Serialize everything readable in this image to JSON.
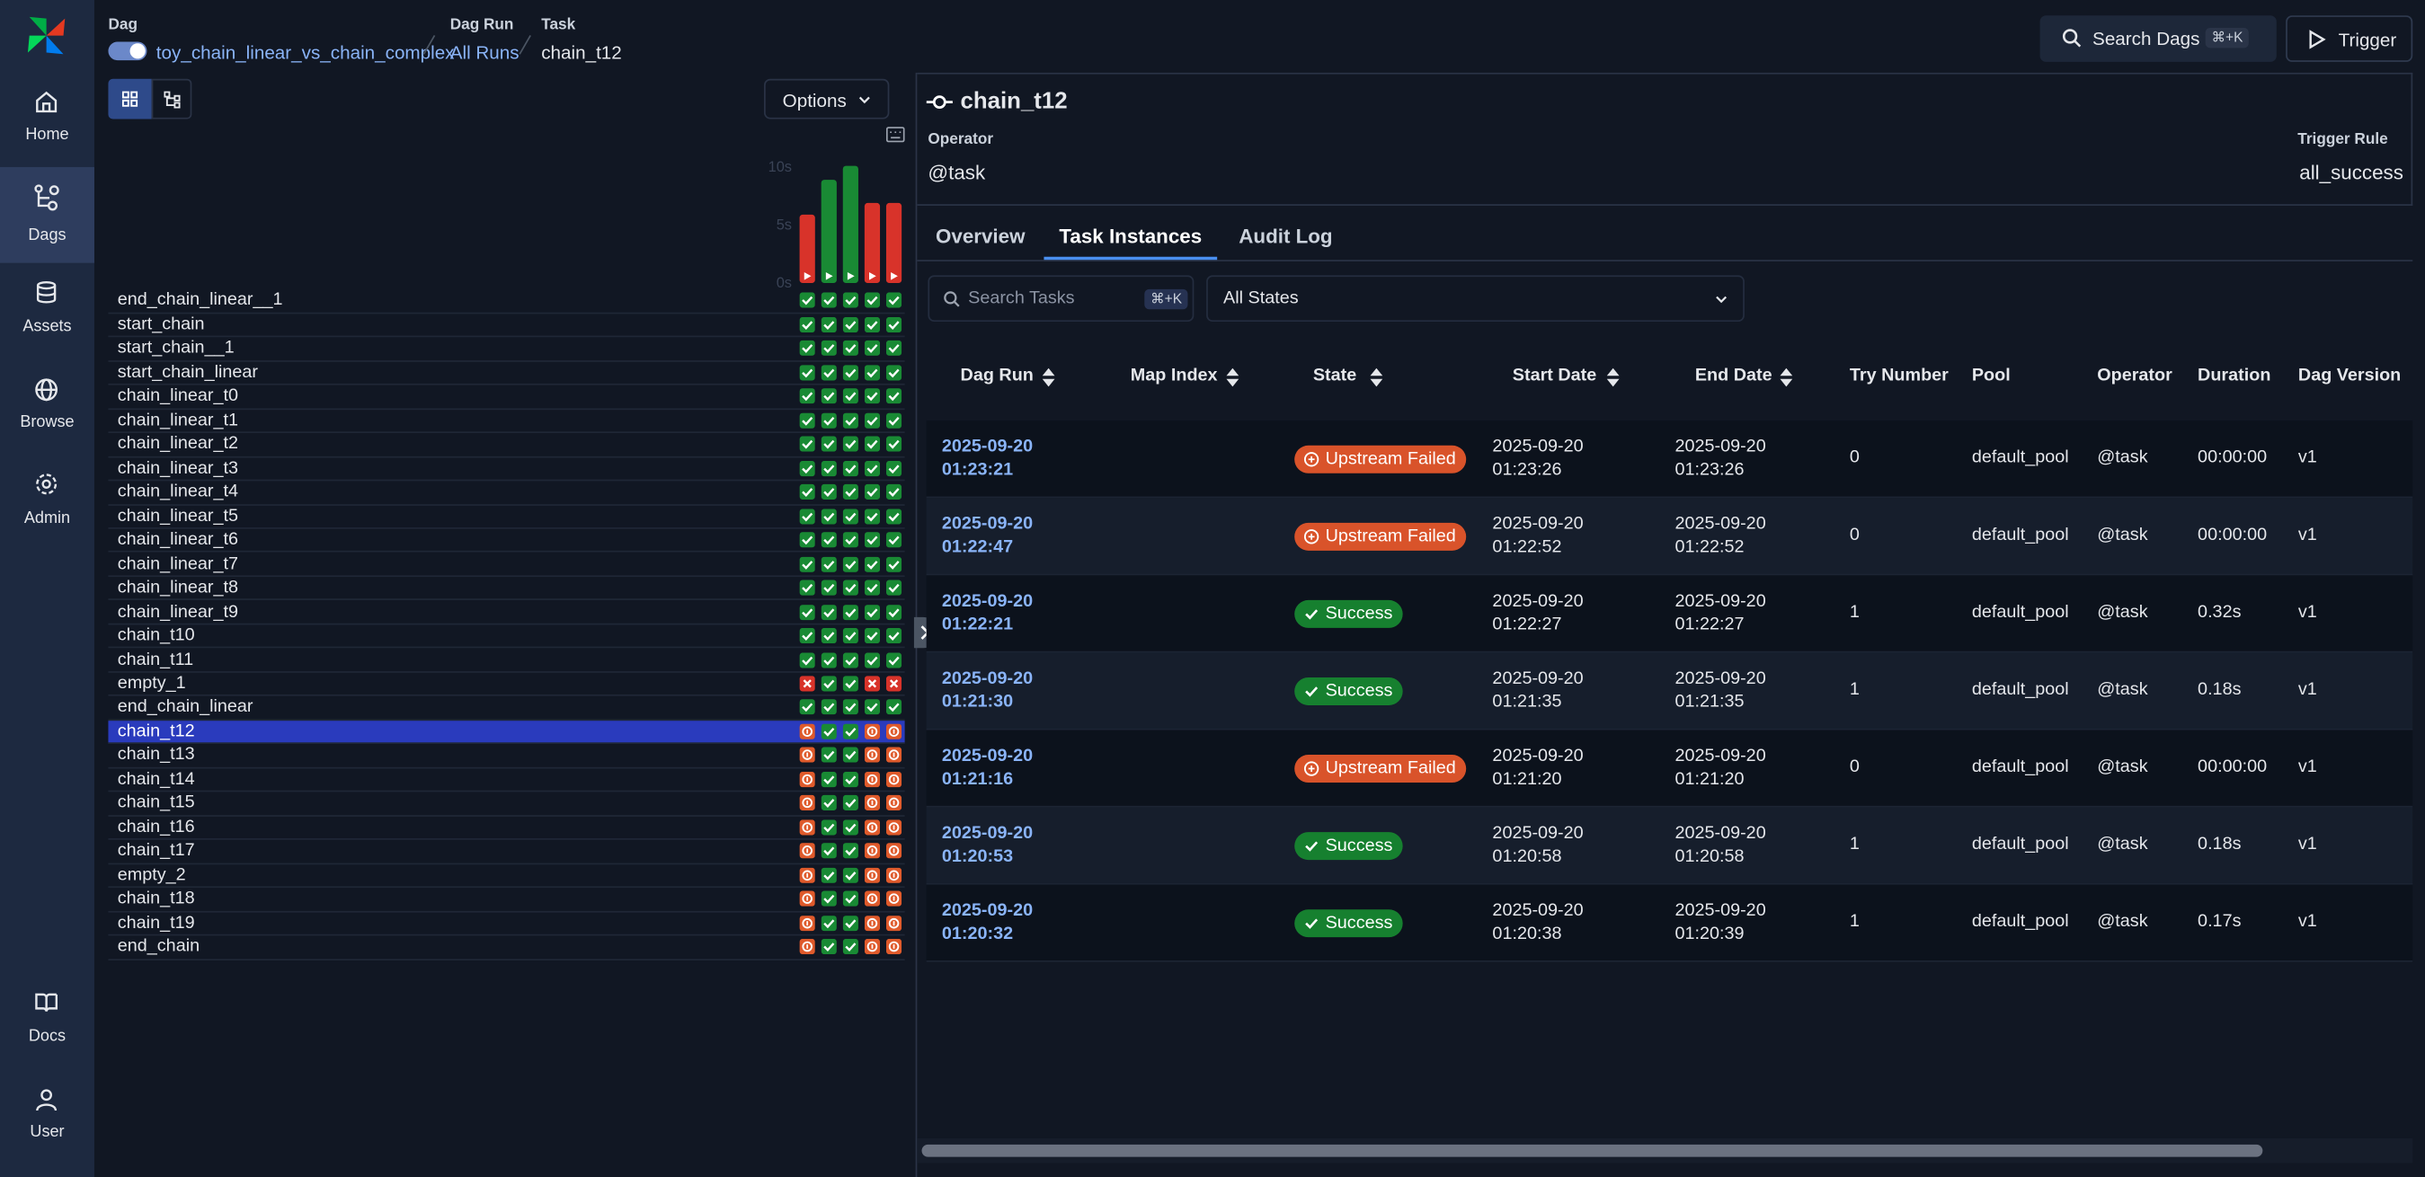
{
  "nav": {
    "items": [
      "Home",
      "Dags",
      "Assets",
      "Browse",
      "Admin"
    ],
    "bottom": [
      "Docs",
      "User"
    ]
  },
  "breadcrumb": {
    "dag_label": "Dag",
    "dag": "toy_chain_linear_vs_chain_complex",
    "dag_run_label": "Dag Run",
    "dag_run": "All Runs",
    "task_label": "Task",
    "task": "chain_t12"
  },
  "header": {
    "search": "Search Dags",
    "shortcut": "⌘+K",
    "trigger": "Trigger"
  },
  "grid": {
    "options": "Options",
    "duration_axis": {
      "ylim": [
        0,
        10
      ],
      "ticks": [
        {
          "value": 10,
          "label": "10s"
        },
        {
          "value": 5,
          "label": "5s"
        },
        {
          "value": 0,
          "label": "0s"
        }
      ]
    },
    "run_durations": [
      5.9,
      8.9,
      10.1,
      6.9,
      6.9
    ],
    "run_states": [
      "failed",
      "success",
      "success",
      "failed",
      "failed"
    ],
    "tasks": [
      {
        "name": "end_chain_linear__1",
        "states": [
          "success",
          "success",
          "success",
          "success",
          "success"
        ]
      },
      {
        "name": "start_chain",
        "states": [
          "success",
          "success",
          "success",
          "success",
          "success"
        ]
      },
      {
        "name": "start_chain__1",
        "states": [
          "success",
          "success",
          "success",
          "success",
          "success"
        ]
      },
      {
        "name": "start_chain_linear",
        "states": [
          "success",
          "success",
          "success",
          "success",
          "success"
        ]
      },
      {
        "name": "chain_linear_t0",
        "states": [
          "success",
          "success",
          "success",
          "success",
          "success"
        ]
      },
      {
        "name": "chain_linear_t1",
        "states": [
          "success",
          "success",
          "success",
          "success",
          "success"
        ]
      },
      {
        "name": "chain_linear_t2",
        "states": [
          "success",
          "success",
          "success",
          "success",
          "success"
        ]
      },
      {
        "name": "chain_linear_t3",
        "states": [
          "success",
          "success",
          "success",
          "success",
          "success"
        ]
      },
      {
        "name": "chain_linear_t4",
        "states": [
          "success",
          "success",
          "success",
          "success",
          "success"
        ]
      },
      {
        "name": "chain_linear_t5",
        "states": [
          "success",
          "success",
          "success",
          "success",
          "success"
        ]
      },
      {
        "name": "chain_linear_t6",
        "states": [
          "success",
          "success",
          "success",
          "success",
          "success"
        ]
      },
      {
        "name": "chain_linear_t7",
        "states": [
          "success",
          "success",
          "success",
          "success",
          "success"
        ]
      },
      {
        "name": "chain_linear_t8",
        "states": [
          "success",
          "success",
          "success",
          "success",
          "success"
        ]
      },
      {
        "name": "chain_linear_t9",
        "states": [
          "success",
          "success",
          "success",
          "success",
          "success"
        ]
      },
      {
        "name": "chain_t10",
        "states": [
          "success",
          "success",
          "success",
          "success",
          "success"
        ]
      },
      {
        "name": "chain_t11",
        "states": [
          "success",
          "success",
          "success",
          "success",
          "success"
        ]
      },
      {
        "name": "empty_1",
        "states": [
          "failed",
          "success",
          "success",
          "failed",
          "failed"
        ]
      },
      {
        "name": "end_chain_linear",
        "states": [
          "success",
          "success",
          "success",
          "success",
          "success"
        ]
      },
      {
        "name": "chain_t12",
        "states": [
          "upstream_failed",
          "success",
          "success",
          "upstream_failed",
          "upstream_failed"
        ]
      },
      {
        "name": "chain_t13",
        "states": [
          "upstream_failed",
          "success",
          "success",
          "upstream_failed",
          "upstream_failed"
        ]
      },
      {
        "name": "chain_t14",
        "states": [
          "upstream_failed",
          "success",
          "success",
          "upstream_failed",
          "upstream_failed"
        ]
      },
      {
        "name": "chain_t15",
        "states": [
          "upstream_failed",
          "success",
          "success",
          "upstream_failed",
          "upstream_failed"
        ]
      },
      {
        "name": "chain_t16",
        "states": [
          "upstream_failed",
          "success",
          "success",
          "upstream_failed",
          "upstream_failed"
        ]
      },
      {
        "name": "chain_t17",
        "states": [
          "upstream_failed",
          "success",
          "success",
          "upstream_failed",
          "upstream_failed"
        ]
      },
      {
        "name": "empty_2",
        "states": [
          "upstream_failed",
          "success",
          "success",
          "upstream_failed",
          "upstream_failed"
        ]
      },
      {
        "name": "chain_t18",
        "states": [
          "upstream_failed",
          "success",
          "success",
          "upstream_failed",
          "upstream_failed"
        ]
      },
      {
        "name": "chain_t19",
        "states": [
          "upstream_failed",
          "success",
          "success",
          "upstream_failed",
          "upstream_failed"
        ]
      },
      {
        "name": "end_chain",
        "states": [
          "upstream_failed",
          "success",
          "success",
          "upstream_failed",
          "upstream_failed"
        ]
      }
    ]
  },
  "task": {
    "name": "chain_t12",
    "operator_label": "Operator",
    "operator": "@task",
    "trigger_rule_label": "Trigger Rule",
    "trigger_rule": "all_success"
  },
  "tabs": [
    "Overview",
    "Task Instances",
    "Audit Log"
  ],
  "filters": {
    "search": "Search Tasks",
    "shortcut": "⌘+K",
    "states": "All States"
  },
  "table": {
    "columns": [
      "Dag Run",
      "Map Index",
      "State",
      "Start Date",
      "End Date",
      "Try Number",
      "Pool",
      "Operator",
      "Duration",
      "Dag Version"
    ],
    "rows": [
      {
        "dag_run": "2025-09-20 01:23:21",
        "state": "Upstream Failed",
        "start_date": "2025-09-20 01:23:26",
        "end_date": "2025-09-20 01:23:26",
        "try_number": 0,
        "pool": "default_pool",
        "operator": "@task",
        "duration": "00:00:00",
        "dag_version": "v1"
      },
      {
        "dag_run": "2025-09-20 01:22:47",
        "state": "Upstream Failed",
        "start_date": "2025-09-20 01:22:52",
        "end_date": "2025-09-20 01:22:52",
        "try_number": 0,
        "pool": "default_pool",
        "operator": "@task",
        "duration": "00:00:00",
        "dag_version": "v1"
      },
      {
        "dag_run": "2025-09-20 01:22:21",
        "state": "Success",
        "start_date": "2025-09-20 01:22:27",
        "end_date": "2025-09-20 01:22:27",
        "try_number": 1,
        "pool": "default_pool",
        "operator": "@task",
        "duration": "0.32s",
        "dag_version": "v1"
      },
      {
        "dag_run": "2025-09-20 01:21:30",
        "state": "Success",
        "start_date": "2025-09-20 01:21:35",
        "end_date": "2025-09-20 01:21:35",
        "try_number": 1,
        "pool": "default_pool",
        "operator": "@task",
        "duration": "0.18s",
        "dag_version": "v1"
      },
      {
        "dag_run": "2025-09-20 01:21:16",
        "state": "Upstream Failed",
        "start_date": "2025-09-20 01:21:20",
        "end_date": "2025-09-20 01:21:20",
        "try_number": 0,
        "pool": "default_pool",
        "operator": "@task",
        "duration": "00:00:00",
        "dag_version": "v1"
      },
      {
        "dag_run": "2025-09-20 01:20:53",
        "state": "Success",
        "start_date": "2025-09-20 01:20:58",
        "end_date": "2025-09-20 01:20:58",
        "try_number": 1,
        "pool": "default_pool",
        "operator": "@task",
        "duration": "0.18s",
        "dag_version": "v1"
      },
      {
        "dag_run": "2025-09-20 01:20:32",
        "state": "Success",
        "start_date": "2025-09-20 01:20:38",
        "end_date": "2025-09-20 01:20:39",
        "try_number": 1,
        "pool": "default_pool",
        "operator": "@task",
        "duration": "0.17s",
        "dag_version": "v1"
      }
    ]
  }
}
